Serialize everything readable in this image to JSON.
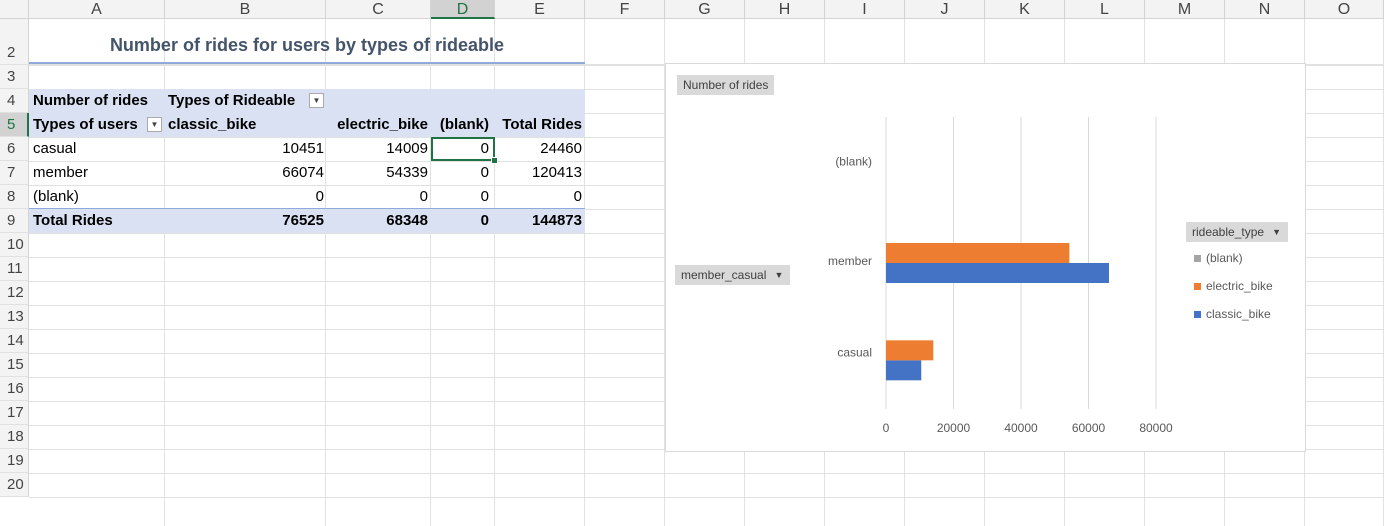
{
  "columns": [
    "A",
    "B",
    "C",
    "D",
    "E",
    "F",
    "G",
    "H",
    "I",
    "J",
    "K",
    "L",
    "M",
    "N",
    "O"
  ],
  "selected_column": "D",
  "rows": [
    "1",
    "2",
    "3",
    "4",
    "5",
    "6",
    "7",
    "8",
    "9",
    "10",
    "11",
    "12",
    "13",
    "14",
    "15",
    "16",
    "17",
    "18",
    "19",
    "20"
  ],
  "selected_row": "5",
  "sheet_title": "Number of rides for users by types of rideable",
  "pivot": {
    "values_label": "Number of rides",
    "column_field_label": "Types of Rideable",
    "row_field_label": "Types of users",
    "column_headers": [
      "classic_bike",
      "electric_bike",
      "(blank)",
      "Total Rides"
    ],
    "rows": [
      {
        "label": "casual",
        "values": [
          "10451",
          "14009",
          "0",
          "24460"
        ]
      },
      {
        "label": "member",
        "values": [
          "66074",
          "54339",
          "0",
          "120413"
        ]
      },
      {
        "label": "(blank)",
        "values": [
          "0",
          "0",
          "0",
          "0"
        ]
      }
    ],
    "total": {
      "label": "Total Rides",
      "values": [
        "76525",
        "68348",
        "0",
        "144873"
      ]
    }
  },
  "chart": {
    "values_button": "Number of rides",
    "axis_button": "member_casual",
    "legend_button": "rideable_type",
    "colors": {
      "blank": "#a5a5a5",
      "electric_bike": "#ed7d31",
      "classic_bike": "#4472c4"
    }
  },
  "chart_data": {
    "type": "bar",
    "orientation": "horizontal",
    "categories": [
      "casual",
      "member",
      "(blank)"
    ],
    "series": [
      {
        "name": "classic_bike",
        "values": [
          10451,
          66074,
          0
        ]
      },
      {
        "name": "electric_bike",
        "values": [
          14009,
          54339,
          0
        ]
      },
      {
        "name": "(blank)",
        "values": [
          0,
          0,
          0
        ]
      }
    ],
    "xlim": [
      0,
      80000
    ],
    "ticks": [
      "0",
      "20000",
      "40000",
      "60000",
      "80000"
    ],
    "legend_entries": [
      "(blank)",
      "electric_bike",
      "classic_bike"
    ],
    "legend_position": "right",
    "grid": "vertical"
  }
}
